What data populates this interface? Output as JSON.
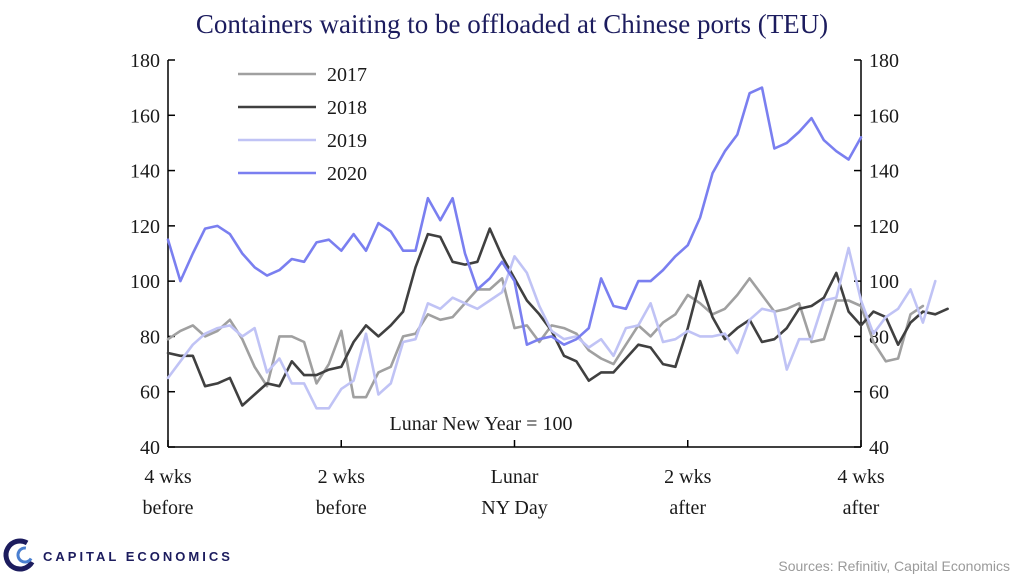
{
  "chart_data": {
    "type": "line",
    "title": "Containers waiting to be offloaded at Chinese ports (TEU)",
    "annotation": "Lunar  New Year = 100",
    "ylim": [
      40,
      180
    ],
    "yticks": [
      "40",
      "60",
      "80",
      "100",
      "120",
      "140",
      "160",
      "180"
    ],
    "xlim": [
      -28,
      28
    ],
    "xticks": [
      {
        "x": -28,
        "line1": "4 wks",
        "line2": "before"
      },
      {
        "x": -14,
        "line1": "2 wks",
        "line2": "before"
      },
      {
        "x": 0,
        "line1": "Lunar",
        "line2": "NY Day"
      },
      {
        "x": 14,
        "line1": "2 wks",
        "line2": "after"
      },
      {
        "x": 28,
        "line1": "4 wks",
        "line2": "after"
      }
    ],
    "x_start": -28,
    "series": [
      {
        "name": "2017",
        "color": "#a0a0a0",
        "values": [
          79,
          82,
          84,
          80,
          82,
          86,
          79,
          69,
          62,
          80,
          80,
          78,
          63,
          70,
          82,
          58,
          58,
          67,
          69,
          80,
          81,
          88,
          86,
          87,
          92,
          97,
          97,
          101,
          83,
          84,
          78,
          84,
          83,
          81,
          75,
          72,
          70,
          77,
          84,
          80,
          85,
          88,
          95,
          92,
          88,
          90,
          95,
          101,
          95,
          89,
          90,
          92,
          78,
          79,
          93,
          93,
          91,
          78,
          71,
          72,
          88,
          91
        ]
      },
      {
        "name": "2018",
        "color": "#404040",
        "values": [
          74,
          73,
          73,
          62,
          63,
          65,
          55,
          59,
          63,
          62,
          71,
          66,
          66,
          68,
          69,
          78,
          84,
          80,
          84,
          89,
          105,
          117,
          116,
          107,
          106,
          107,
          119,
          109,
          101,
          93,
          88,
          82,
          73,
          71,
          64,
          67,
          67,
          72,
          77,
          76,
          70,
          69,
          83,
          100,
          87,
          79,
          83,
          86,
          78,
          79,
          83,
          90,
          91,
          94,
          103,
          89,
          84,
          89,
          87,
          77,
          85,
          89,
          88,
          90
        ]
      },
      {
        "name": "2019",
        "color": "#c0c3f5",
        "values": [
          65,
          71,
          77,
          81,
          83,
          84,
          80,
          83,
          67,
          72,
          63,
          63,
          54,
          54,
          61,
          64,
          81,
          59,
          63,
          78,
          79,
          92,
          90,
          94,
          92,
          90,
          93,
          96,
          109,
          103,
          91,
          82,
          79,
          80,
          76,
          79,
          73,
          83,
          84,
          92,
          78,
          79,
          82,
          80,
          80,
          81,
          74,
          86,
          90,
          89,
          68,
          79,
          79,
          93,
          94,
          112,
          93,
          81,
          87,
          90,
          97,
          85,
          100
        ]
      },
      {
        "name": "2020",
        "color": "#7a7ff0",
        "values": [
          115,
          100,
          110,
          119,
          120,
          117,
          110,
          105,
          102,
          104,
          108,
          107,
          114,
          115,
          111,
          117,
          111,
          121,
          118,
          111,
          111,
          130,
          122,
          130,
          110,
          97,
          101,
          107,
          100,
          77,
          79,
          80,
          77,
          79,
          83,
          101,
          91,
          90,
          100,
          100,
          104,
          109,
          113,
          123,
          139,
          147,
          153,
          168,
          170,
          148,
          150,
          154,
          159,
          151,
          147,
          144,
          152
        ]
      }
    ]
  },
  "footer": {
    "brand": "CAPITAL ECONOMICS",
    "source": "Sources: Refinitiv, Capital Economics"
  }
}
